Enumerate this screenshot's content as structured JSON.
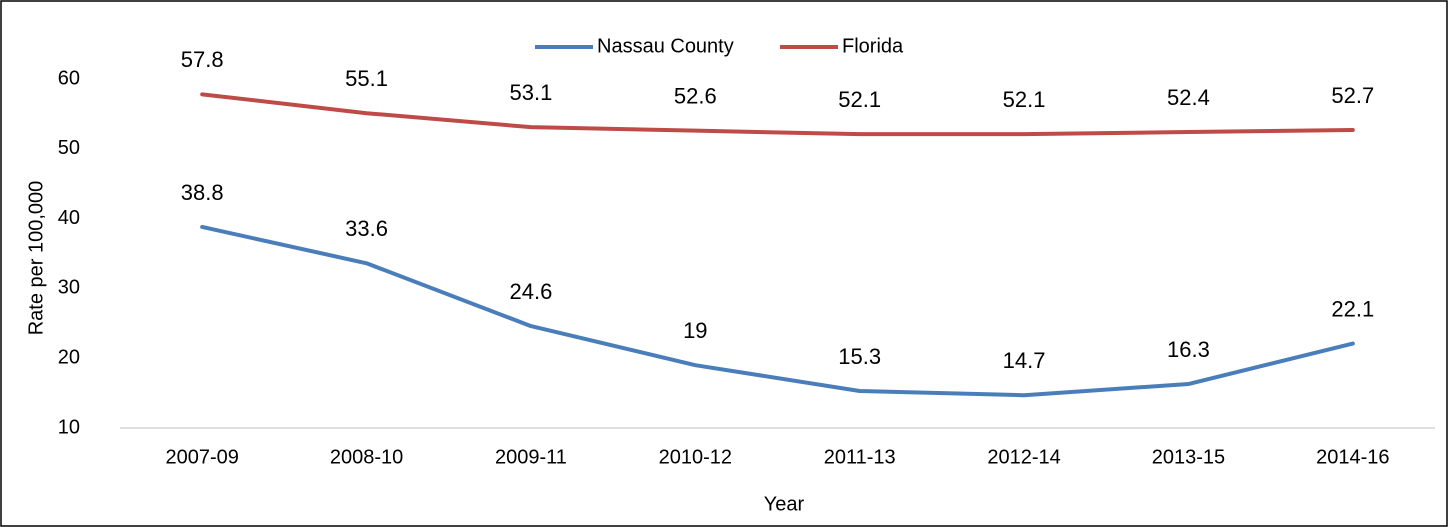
{
  "chart_data": {
    "type": "line",
    "x_label": "Year",
    "y_label": "Rate per 100,000",
    "categories": [
      "2007-09",
      "2008-10",
      "2009-11",
      "2010-12",
      "2011-13",
      "2012-14",
      "2013-15",
      "2014-16"
    ],
    "series": [
      {
        "name": "Nassau County",
        "color": "#4a7ebb",
        "values": [
          38.8,
          33.6,
          24.6,
          19,
          15.3,
          14.7,
          16.3,
          22.1
        ]
      },
      {
        "name": "Florida",
        "color": "#be4b48",
        "values": [
          57.8,
          55.1,
          53.1,
          52.6,
          52.1,
          52.1,
          52.4,
          52.7
        ]
      }
    ],
    "ylim": [
      10,
      60
    ],
    "yticks": [
      10,
      20,
      30,
      40,
      50,
      60
    ],
    "grid": false,
    "legend": "top"
  }
}
